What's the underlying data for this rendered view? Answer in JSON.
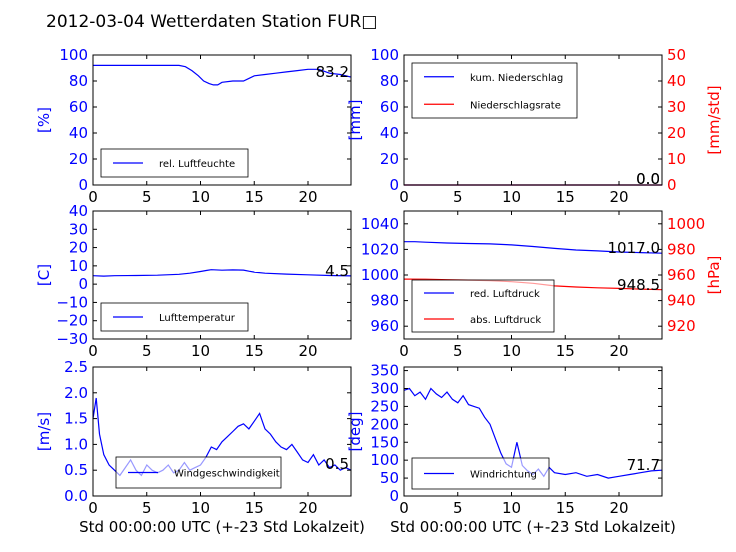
{
  "title": "2012-03-04 Wetterdaten Station FUR□",
  "chart_data": [
    {
      "id": "humidity",
      "type": "line",
      "xlim": [
        0,
        24
      ],
      "xticks": [
        "0",
        "5",
        "10",
        "15",
        "20"
      ],
      "ylim": [
        0,
        100
      ],
      "yticks": [
        "0",
        "20",
        "40",
        "60",
        "80",
        "100"
      ],
      "ylabel": "[%]",
      "current_value": "83.2",
      "legend": {
        "position": "lower-left",
        "entries": [
          {
            "label": "rel. Luftfeuchte",
            "color": "#0000ff"
          }
        ]
      },
      "series": [
        {
          "name": "rel. Luftfeuchte",
          "color": "#0000ff",
          "x": [
            0,
            2,
            4,
            6,
            8,
            8.6,
            9.2,
            9.8,
            10.3,
            10.8,
            11.2,
            11.6,
            12,
            13,
            14,
            14.5,
            15,
            16,
            17,
            18,
            19,
            20,
            21,
            22,
            23,
            24
          ],
          "y": [
            92,
            92,
            92,
            92,
            92,
            91,
            88,
            84,
            80,
            78,
            77,
            77,
            79,
            80,
            80,
            82,
            84,
            85,
            86,
            87,
            88,
            89,
            89,
            86,
            85,
            83
          ]
        }
      ]
    },
    {
      "id": "precip",
      "type": "line",
      "xlim": [
        0,
        24
      ],
      "xticks": [
        "0",
        "5",
        "10",
        "15",
        "20"
      ],
      "ylim": [
        0,
        100
      ],
      "yticks": [
        "0",
        "20",
        "40",
        "60",
        "80",
        "100"
      ],
      "ylabel": "[mm]",
      "y2lim": [
        0,
        50
      ],
      "y2ticks": [
        "0",
        "10",
        "20",
        "30",
        "40",
        "50"
      ],
      "y2label": "[mm/std]",
      "current_values": [
        "0.0",
        "0.0"
      ],
      "legend": {
        "position": "upper-left",
        "entries": [
          {
            "label": "kum. Niederschlag",
            "color": "#0000ff"
          },
          {
            "label": "Niederschlagsrate",
            "color": "#ff0000"
          }
        ]
      },
      "series": [
        {
          "name": "kum. Niederschlag",
          "color": "#0000ff",
          "axis": "left",
          "x": [
            0,
            24
          ],
          "y": [
            0,
            0
          ]
        },
        {
          "name": "Niederschlagsrate",
          "color": "#ff0000",
          "axis": "right",
          "x": [
            0,
            24
          ],
          "y": [
            0,
            0
          ]
        }
      ]
    },
    {
      "id": "temperature",
      "type": "line",
      "xlim": [
        0,
        24
      ],
      "xticks": [
        "0",
        "5",
        "10",
        "15",
        "20"
      ],
      "ylim": [
        -30,
        40
      ],
      "yticks": [
        "−30",
        "−20",
        "−10",
        "0",
        "10",
        "20",
        "30",
        "40"
      ],
      "ylabel": "[C]",
      "current_value": "4.5",
      "legend": {
        "position": "lower-left",
        "entries": [
          {
            "label": "Lufttemperatur",
            "color": "#0000ff"
          }
        ]
      },
      "series": [
        {
          "name": "Lufttemperatur",
          "color": "#0000ff",
          "x": [
            0,
            1,
            2,
            4,
            6,
            8,
            9,
            10,
            10.6,
            11,
            12,
            13,
            14,
            14.5,
            15,
            16,
            18,
            20,
            22,
            24
          ],
          "y": [
            4.6,
            4.4,
            4.6,
            4.7,
            4.9,
            5.4,
            6.0,
            6.9,
            7.5,
            7.9,
            7.6,
            7.8,
            7.7,
            7.1,
            6.6,
            6.0,
            5.5,
            5.1,
            4.7,
            4.5
          ]
        }
      ]
    },
    {
      "id": "pressure",
      "type": "line",
      "xlim": [
        0,
        24
      ],
      "xticks": [
        "0",
        "5",
        "10",
        "15",
        "20"
      ],
      "ylim": [
        950,
        1050
      ],
      "yticks": [
        "960",
        "980",
        "1000",
        "1020",
        "1040"
      ],
      "y2lim": [
        910,
        1010
      ],
      "y2ticks": [
        "920",
        "940",
        "960",
        "980",
        "1000"
      ],
      "y2label": "[hPa]",
      "current_values": [
        "1017.0",
        "948.5"
      ],
      "legend": {
        "position": "lower-left",
        "entries": [
          {
            "label": "red. Luftdruck",
            "color": "#0000ff"
          },
          {
            "label": "abs. Luftdruck",
            "color": "#ff0000"
          }
        ]
      },
      "series": [
        {
          "name": "red. Luftdruck",
          "color": "#0000ff",
          "axis": "left",
          "x": [
            0,
            1,
            2,
            4,
            6,
            8,
            10,
            12,
            14,
            16,
            18,
            20,
            22,
            24
          ],
          "y": [
            1026,
            1026,
            1025.6,
            1025,
            1024.6,
            1024.3,
            1023.5,
            1022.3,
            1020.8,
            1019.5,
            1018.8,
            1018,
            1017.5,
            1017
          ]
        },
        {
          "name": "abs. Luftdruck",
          "color": "#ff0000",
          "axis": "right",
          "x": [
            0,
            2,
            4,
            6,
            8,
            10,
            12,
            14,
            16,
            18,
            20,
            22,
            24
          ],
          "y": [
            956.8,
            956.7,
            956.3,
            956,
            955.6,
            954.8,
            953.5,
            951.5,
            950.6,
            950,
            949.5,
            949,
            948.5
          ]
        }
      ]
    },
    {
      "id": "windspeed",
      "type": "line",
      "xlim": [
        0,
        24
      ],
      "xticks": [
        "0",
        "5",
        "10",
        "15",
        "20"
      ],
      "ylim": [
        0,
        2.5
      ],
      "yticks": [
        "0.0",
        "0.5",
        "1.0",
        "1.5",
        "2.0",
        "2.5"
      ],
      "ylabel": "[m/s]",
      "xlabel": "Std 00:00:00 UTC (+-23 Std Lokalzeit)",
      "current_value": "0.5",
      "legend": {
        "position": "lower-center",
        "entries": [
          {
            "label": "Windgeschwindigkeit",
            "color": "#0000ff"
          }
        ]
      },
      "series": [
        {
          "name": "Windgeschwindigkeit",
          "color": "#0000ff",
          "x": [
            0,
            0.3,
            0.6,
            1,
            1.5,
            2,
            2.5,
            3,
            3.5,
            4,
            4.5,
            5,
            5.5,
            6,
            6.5,
            7,
            7.5,
            8,
            8.5,
            9,
            9.5,
            10,
            10.5,
            11,
            11.5,
            12,
            12.5,
            13,
            13.5,
            14,
            14.5,
            15,
            15.5,
            16,
            16.5,
            17,
            17.5,
            18,
            18.5,
            19,
            19.5,
            20,
            20.5,
            21,
            21.5,
            22,
            22.5,
            23,
            23.5,
            24
          ],
          "y": [
            1.5,
            1.9,
            1.2,
            0.8,
            0.6,
            0.5,
            0.4,
            0.55,
            0.7,
            0.5,
            0.4,
            0.6,
            0.5,
            0.45,
            0.5,
            0.6,
            0.45,
            0.5,
            0.65,
            0.5,
            0.55,
            0.6,
            0.75,
            0.95,
            0.9,
            1.05,
            1.15,
            1.25,
            1.35,
            1.4,
            1.3,
            1.45,
            1.6,
            1.3,
            1.2,
            1.05,
            0.95,
            0.9,
            1.0,
            0.85,
            0.7,
            0.65,
            0.8,
            0.6,
            0.7,
            0.55,
            0.6,
            0.5,
            0.55,
            0.5
          ]
        }
      ]
    },
    {
      "id": "winddir",
      "type": "line",
      "xlim": [
        0,
        24
      ],
      "xticks": [
        "0",
        "5",
        "10",
        "15",
        "20"
      ],
      "ylim": [
        0,
        360
      ],
      "yticks": [
        "0",
        "50",
        "100",
        "150",
        "200",
        "250",
        "300",
        "350"
      ],
      "ylabel": "[deg]",
      "xlabel": "Std 00:00:00 UTC (+-23 Std Lokalzeit)",
      "current_value": "71.7",
      "legend": {
        "position": "lower-left",
        "entries": [
          {
            "label": "Windrichtung",
            "color": "#0000ff"
          }
        ]
      },
      "series": [
        {
          "name": "Windrichtung",
          "color": "#0000ff",
          "x": [
            0,
            0.5,
            1,
            1.5,
            2,
            2.5,
            3,
            3.5,
            4,
            4.5,
            5,
            5.5,
            6,
            6.5,
            7,
            7.5,
            8,
            8.5,
            9,
            9.5,
            10,
            10.5,
            11,
            11.5,
            12,
            12.5,
            13,
            13.5,
            14,
            15,
            16,
            17,
            18,
            19,
            20,
            21,
            22,
            23,
            24
          ],
          "y": [
            295,
            300,
            280,
            290,
            270,
            300,
            285,
            275,
            290,
            270,
            260,
            280,
            255,
            250,
            245,
            220,
            200,
            160,
            120,
            90,
            80,
            150,
            85,
            70,
            60,
            75,
            55,
            80,
            65,
            60,
            65,
            55,
            60,
            50,
            55,
            60,
            65,
            70,
            72
          ]
        }
      ]
    }
  ]
}
